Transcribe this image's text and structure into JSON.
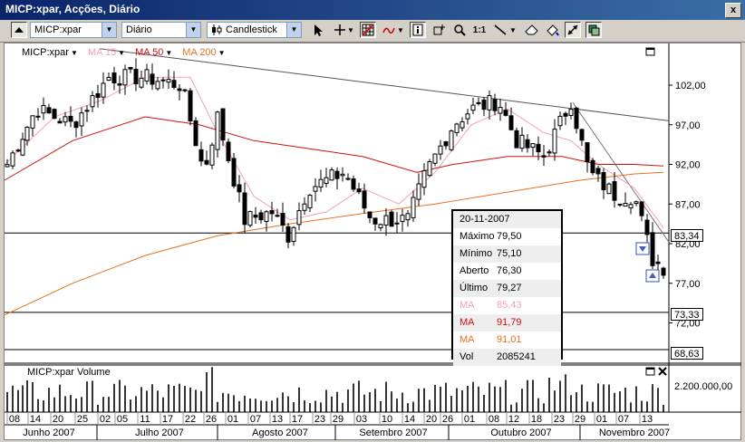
{
  "window": {
    "title": "MICP:xpar, Acções, Diário",
    "close_icon": "x"
  },
  "toolbar": {
    "symbol": "MICP:xpar",
    "period": "Diário",
    "chart_type": "Candlestick",
    "zoom_reset_label": "1:1"
  },
  "legend": [
    {
      "label": "MICP:xpar",
      "color": "#000000"
    },
    {
      "label": "MA 15",
      "color": "#f4a0b8"
    },
    {
      "label": "MA 50",
      "color": "#d01010"
    },
    {
      "label": "MA 200",
      "color": "#e87020"
    }
  ],
  "price_axis": [
    "102,00",
    "97,00",
    "92,00",
    "87,00",
    "82,00",
    "77,00",
    "72,00"
  ],
  "price_markers": {
    "upper": "83,34",
    "middle": "73,33",
    "lower": "68,63"
  },
  "tooltip": {
    "date": "20-11-2007",
    "rows": [
      {
        "label": "Máximo",
        "value": "79,50",
        "color": "#000000"
      },
      {
        "label": "Mínimo",
        "value": "75,10",
        "color": "#000000"
      },
      {
        "label": "Aberto",
        "value": "76,30",
        "color": "#000000"
      },
      {
        "label": "Último",
        "value": "79,27",
        "color": "#000000"
      },
      {
        "label": "MA",
        "value": "85,43",
        "color": "#f4a0b8"
      },
      {
        "label": "MA",
        "value": "91,79",
        "color": "#d01010"
      },
      {
        "label": "MA",
        "value": "91,01",
        "color": "#e87020"
      },
      {
        "label": "Vol",
        "value": "2085241",
        "color": "#000000"
      }
    ]
  },
  "volume_pane": {
    "label": "MICP:xpar Volume",
    "axis_label": "2.200.000,00"
  },
  "date_ticks": [
    "08",
    "14",
    "20",
    "25",
    "02",
    "05",
    "11",
    "17",
    "22",
    "26",
    "01",
    "07",
    "13",
    "17",
    "23",
    "29",
    "03",
    "10",
    "14",
    "20",
    "26",
    "01",
    "08",
    "12",
    "18",
    "23",
    "29",
    "01",
    "07",
    "13"
  ],
  "months": [
    "Junho 2007",
    "Julho 2007",
    "Agosto 2007",
    "Setembro 2007",
    "Outubro 2007",
    "Novembro 2007"
  ],
  "chart_data": {
    "type": "candlestick",
    "ylim": [
      67,
      106
    ],
    "ma_periods": [
      15,
      50,
      200
    ],
    "hlines": [
      83.34,
      73.33,
      68.63
    ],
    "last_close": 79.27
  }
}
